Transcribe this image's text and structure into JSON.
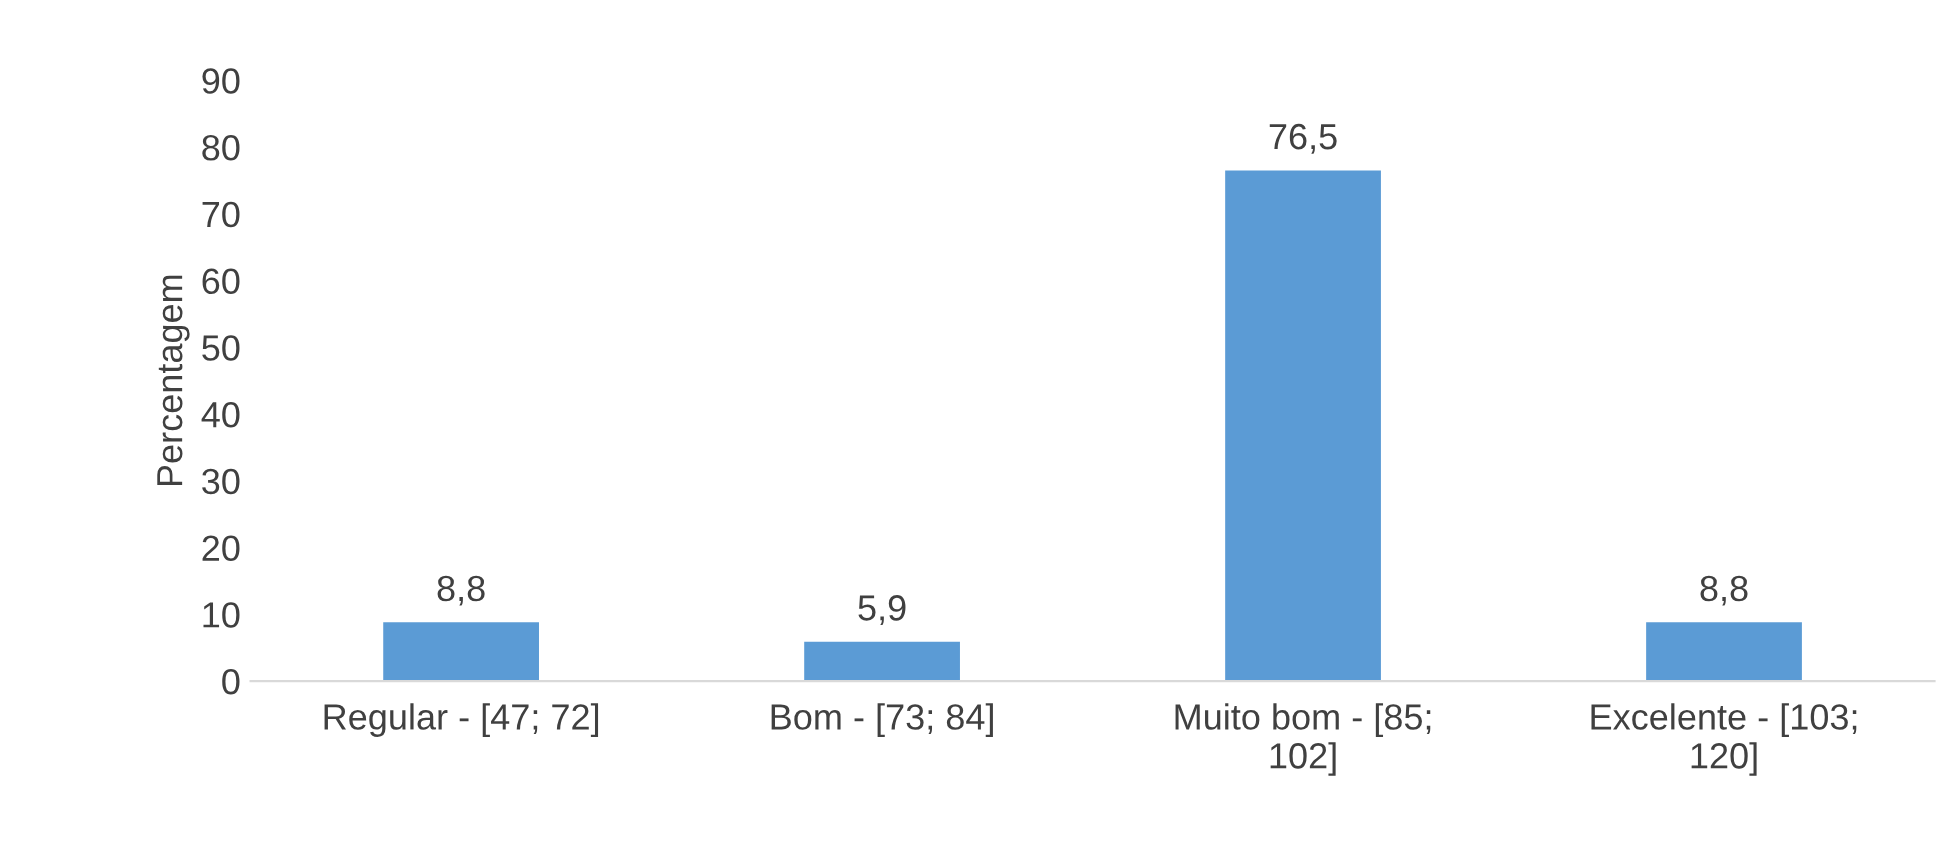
{
  "chart_data": {
    "type": "bar",
    "ylabel": "Percentagem",
    "categories": [
      "Regular - [47; 72]",
      "Bom - [73; 84]",
      "Muito bom - [85; 102]",
      "Excelente - [103; 120]"
    ],
    "values": [
      8.8,
      5.9,
      76.5,
      8.8
    ],
    "value_labels": [
      "8,8",
      "5,9",
      "76,5",
      "8,8"
    ],
    "color": "#5b9bd5",
    "ylim": [
      0,
      90
    ],
    "yticks": [
      0,
      10,
      20,
      30,
      40,
      50,
      60,
      70,
      80,
      90
    ],
    "grid": false,
    "legend": false
  }
}
